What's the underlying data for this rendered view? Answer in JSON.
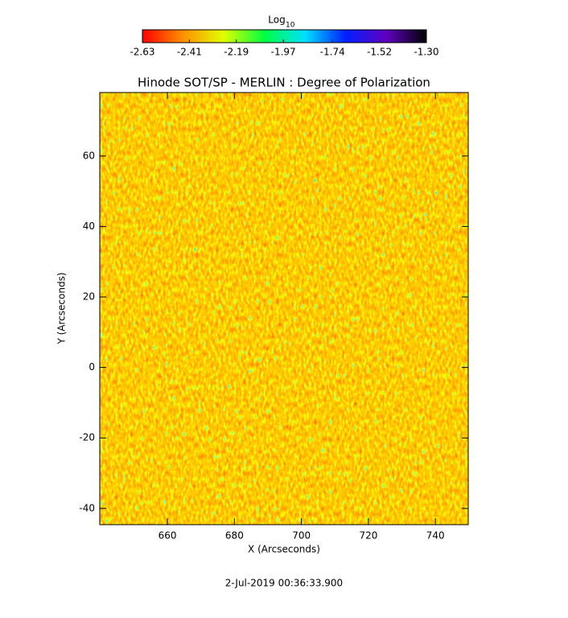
{
  "chart_data": {
    "type": "heatmap",
    "title": "Hinode SOT/SP - MERLIN : Degree of Polarization",
    "x_label": "X (Arcseconds)",
    "y_label": "Y (Arcseconds)",
    "footer": "2-Jul-2019 00:36:33.900",
    "colorbar_label": "Log",
    "colorbar_label_subscript": "10",
    "colorbar_lim": [
      -2.63,
      -1.3
    ],
    "colorbar_ticks": [
      -2.63,
      -2.41,
      -2.19,
      -1.97,
      -1.74,
      -1.52,
      {
        "value": -1.3,
        "label": "-1.30"
      }
    ],
    "colormap": [
      "#ff0000",
      "#ff9000",
      "#e0ff00",
      "#00ff40",
      "#00e0ff",
      "#0020ff",
      "#6000c0",
      "#000000"
    ],
    "xlim": [
      639.8,
      749.8
    ],
    "xticks": [
      660,
      680,
      700,
      720,
      740
    ],
    "ylim": [
      -44.6,
      78.0
    ],
    "yticks": [
      -40,
      -20,
      0,
      20,
      40,
      60
    ]
  }
}
